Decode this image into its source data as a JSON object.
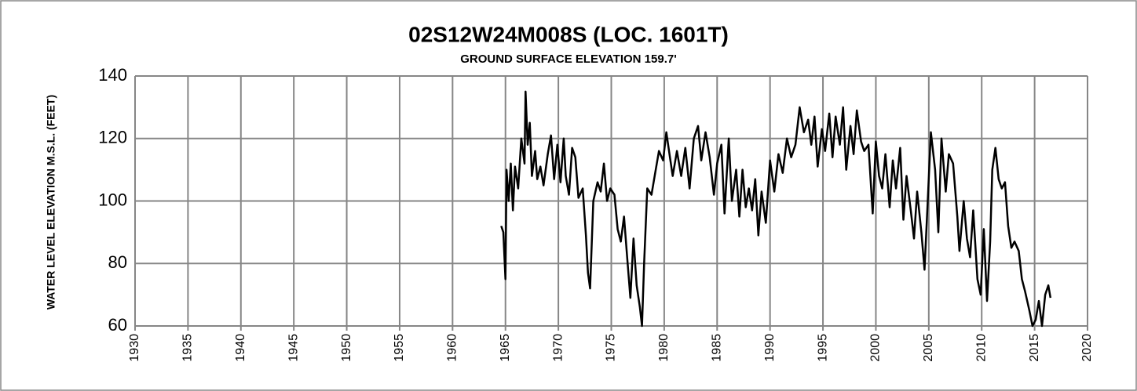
{
  "chart_data": {
    "type": "line",
    "title": "02S12W24M008S (LOC. 1601T)",
    "subtitle": "GROUND SURFACE ELEVATION 159.7'",
    "y_label": "WATER LEVEL ELEVATION M.S.L. (FEET)",
    "xlim": [
      1930,
      2020
    ],
    "xticks": [
      1930,
      1935,
      1940,
      1945,
      1950,
      1955,
      1960,
      1965,
      1970,
      1975,
      1980,
      1985,
      1990,
      1995,
      2000,
      2005,
      2010,
      2015,
      2020
    ],
    "ylim": [
      60,
      140
    ],
    "yticks": [
      60,
      80,
      100,
      120,
      140
    ],
    "grid": true,
    "series": [
      {
        "color": "#000000",
        "x": [
          1964.6,
          1964.8,
          1965.0,
          1965.1,
          1965.3,
          1965.5,
          1965.7,
          1965.9,
          1966.2,
          1966.5,
          1966.8,
          1966.9,
          1967.1,
          1967.3,
          1967.5,
          1967.8,
          1968.0,
          1968.3,
          1968.6,
          1969.0,
          1969.3,
          1969.6,
          1969.9,
          1970.2,
          1970.5,
          1970.7,
          1971.0,
          1971.3,
          1971.6,
          1971.9,
          1972.3,
          1972.6,
          1972.8,
          1973.0,
          1973.3,
          1973.7,
          1974.0,
          1974.3,
          1974.6,
          1974.9,
          1975.3,
          1975.6,
          1975.9,
          1976.2,
          1976.5,
          1976.8,
          1977.1,
          1977.4,
          1977.7,
          1977.9,
          1978.1,
          1978.4,
          1978.8,
          1979.2,
          1979.5,
          1979.9,
          1980.2,
          1980.5,
          1980.8,
          1981.2,
          1981.6,
          1982.0,
          1982.4,
          1982.8,
          1983.2,
          1983.5,
          1983.9,
          1984.3,
          1984.7,
          1985.0,
          1985.4,
          1985.7,
          1986.1,
          1986.4,
          1986.8,
          1987.1,
          1987.4,
          1987.7,
          1988.0,
          1988.3,
          1988.6,
          1988.9,
          1989.2,
          1989.6,
          1990.0,
          1990.4,
          1990.8,
          1991.2,
          1991.6,
          1992.0,
          1992.4,
          1992.8,
          1993.2,
          1993.6,
          1993.9,
          1994.2,
          1994.5,
          1994.9,
          1995.2,
          1995.6,
          1995.9,
          1996.2,
          1996.6,
          1996.9,
          1997.2,
          1997.6,
          1997.9,
          1998.2,
          1998.6,
          1998.9,
          1999.3,
          1999.7,
          2000.0,
          2000.3,
          2000.6,
          2000.9,
          2001.3,
          2001.6,
          2001.9,
          2002.3,
          2002.6,
          2002.9,
          2003.3,
          2003.6,
          2003.9,
          2004.3,
          2004.6,
          2004.9,
          2005.2,
          2005.6,
          2005.9,
          2006.2,
          2006.6,
          2006.9,
          2007.3,
          2007.7,
          2007.9,
          2008.3,
          2008.6,
          2008.9,
          2009.2,
          2009.6,
          2009.9,
          2010.2,
          2010.5,
          2010.8,
          2011.0,
          2011.3,
          2011.6,
          2011.9,
          2012.2,
          2012.5,
          2012.8,
          2013.1,
          2013.5,
          2013.8,
          2014.1,
          2014.5,
          2014.8,
          2015.1,
          2015.4,
          2015.7,
          2016.0,
          2016.3,
          2016.5
        ],
        "values": [
          92,
          90,
          75,
          110,
          100,
          112,
          97,
          111,
          104,
          120,
          112,
          135,
          118,
          125,
          108,
          116,
          107,
          111,
          105,
          115,
          121,
          107,
          118,
          106,
          120,
          108,
          102,
          117,
          114,
          101,
          104,
          89,
          77,
          72,
          100,
          106,
          103,
          112,
          100,
          104,
          102,
          91,
          87,
          95,
          82,
          69,
          88,
          73,
          66,
          60,
          80,
          104,
          102,
          110,
          116,
          113,
          122,
          115,
          108,
          116,
          108,
          117,
          104,
          120,
          124,
          113,
          122,
          114,
          102,
          112,
          118,
          96,
          120,
          100,
          110,
          95,
          110,
          98,
          104,
          97,
          107,
          89,
          103,
          93,
          113,
          103,
          115,
          109,
          120,
          114,
          118,
          130,
          122,
          126,
          118,
          127,
          111,
          123,
          116,
          128,
          114,
          127,
          118,
          130,
          110,
          124,
          115,
          129,
          119,
          116,
          118,
          96,
          119,
          108,
          104,
          115,
          98,
          113,
          104,
          117,
          94,
          108,
          97,
          88,
          103,
          90,
          78,
          100,
          122,
          110,
          90,
          120,
          103,
          115,
          112,
          95,
          84,
          100,
          88,
          82,
          97,
          75,
          70,
          91,
          68,
          87,
          110,
          117,
          107,
          104,
          106,
          92,
          85,
          87,
          84,
          75,
          71,
          65,
          60,
          62,
          68,
          60,
          70,
          73,
          69
        ]
      }
    ]
  }
}
